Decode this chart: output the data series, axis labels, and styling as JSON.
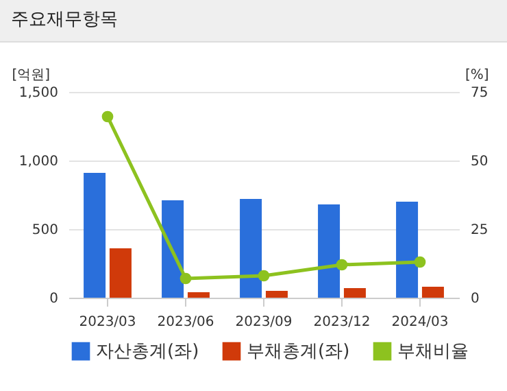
{
  "chart_data": {
    "type": "bar",
    "title": "주요재무항목",
    "ylabel": "[억원]",
    "y2label": "[%]",
    "categories": [
      "2023/03",
      "2023/06",
      "2023/09",
      "2023/12",
      "2024/03"
    ],
    "series": [
      {
        "name": "자산총계(좌)",
        "color": "#2a6fdb",
        "values": [
          910,
          710,
          720,
          680,
          700
        ]
      },
      {
        "name": "부채총계(좌)",
        "color": "#d03a0a",
        "values": [
          360,
          40,
          50,
          70,
          80
        ]
      },
      {
        "name": "부채비율",
        "color": "#8dc21f",
        "type": "line",
        "axis": "y2",
        "values": [
          66,
          7,
          8,
          12,
          13
        ]
      }
    ],
    "ylim": [
      0,
      1500
    ],
    "yticks": [
      0,
      500,
      {
        "value": 1000,
        "label": "1,000"
      },
      {
        "value": 1500,
        "label": "1,500"
      }
    ],
    "y2lim": [
      0,
      75
    ],
    "y2ticks": [
      0,
      25,
      50,
      75
    ],
    "grid": "y",
    "legend": "bottom",
    "marker": "circle",
    "line_style": "solid"
  }
}
